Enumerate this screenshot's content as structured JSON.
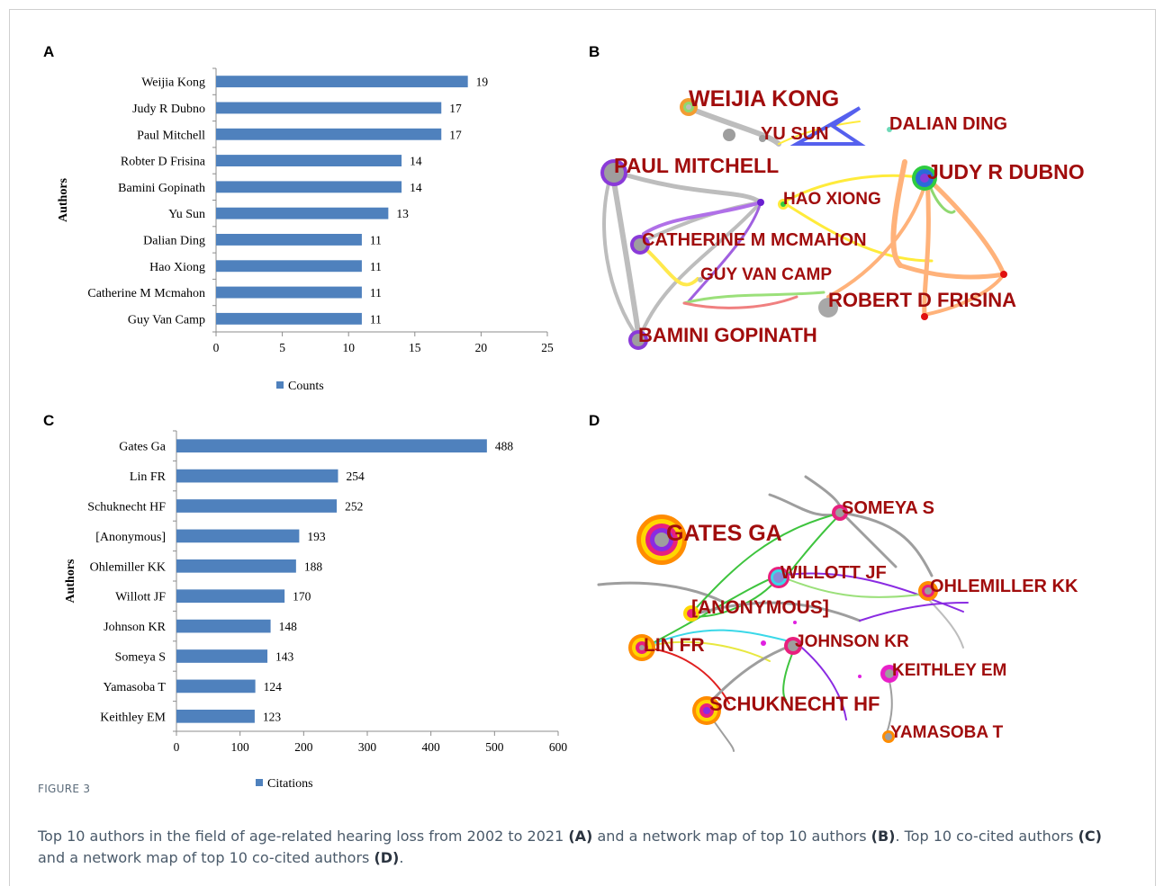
{
  "panels": {
    "a": "A",
    "b": "B",
    "c": "C",
    "d": "D"
  },
  "chart_data": [
    {
      "type": "bar",
      "orientation": "horizontal",
      "categories": [
        "Weijia Kong",
        "Judy R Dubno",
        "Paul Mitchell",
        "Robter D Frisina",
        "Bamini Gopinath",
        "Yu Sun",
        "Dalian Ding",
        "Hao Xiong",
        "Catherine M Mcmahon",
        "Guy Van Camp"
      ],
      "series": [
        {
          "name": "Counts",
          "values": [
            19,
            17,
            17,
            14,
            14,
            13,
            11,
            11,
            11,
            11
          ]
        }
      ],
      "ylabel": "Authors",
      "xlim": [
        0,
        25
      ],
      "xticks": [
        0,
        5,
        10,
        15,
        20,
        25
      ],
      "legend": "bottom",
      "grid": false,
      "color": "#4f81bd"
    },
    {
      "type": "bar",
      "orientation": "horizontal",
      "categories": [
        "Gates Ga",
        "Lin FR",
        "Schuknecht HF",
        "[Anonymous]",
        "Ohlemiller KK",
        "Willott JF",
        "Johnson KR",
        "Someya S",
        "Yamasoba T",
        "Keithley EM"
      ],
      "series": [
        {
          "name": "Citations",
          "values": [
            488,
            254,
            252,
            193,
            188,
            170,
            148,
            143,
            124,
            123
          ]
        }
      ],
      "ylabel": "Authors",
      "xlim": [
        0,
        600
      ],
      "xticks": [
        0,
        100,
        200,
        300,
        400,
        500,
        600
      ],
      "legend": "bottom",
      "grid": false,
      "color": "#4f81bd"
    }
  ],
  "network_b": {
    "labels": [
      "WEIJIA KONG",
      "YU SUN",
      "DALIAN DING",
      "PAUL MITCHELL",
      "JUDY R DUBNO",
      "HAO XIONG",
      "CATHERINE M MCMAHON",
      "GUY VAN CAMP",
      "ROBERT D FRISINA",
      "BAMINI GOPINATH"
    ]
  },
  "network_d": {
    "labels": [
      "SOMEYA S",
      "GATES GA",
      "WILLOTT JF",
      "OHLEMILLER KK",
      "[ANONYMOUS]",
      "LIN FR",
      "JOHNSON KR",
      "KEITHLEY EM",
      "SCHUKNECHT HF",
      "YAMASOBA T"
    ]
  },
  "caption": {
    "heading": "FIGURE 3",
    "t1": "Top 10 authors in the field of age-related hearing loss from 2002 to 2021 ",
    "r1": "(A)",
    "t2": " and a network map of top 10 authors ",
    "r2": "(B)",
    "t3": ". Top 10 co-cited authors ",
    "r3": "(C)",
    "t4": " and a network map of top 10 co-cited authors ",
    "r4": "(D)",
    "t5": "."
  }
}
